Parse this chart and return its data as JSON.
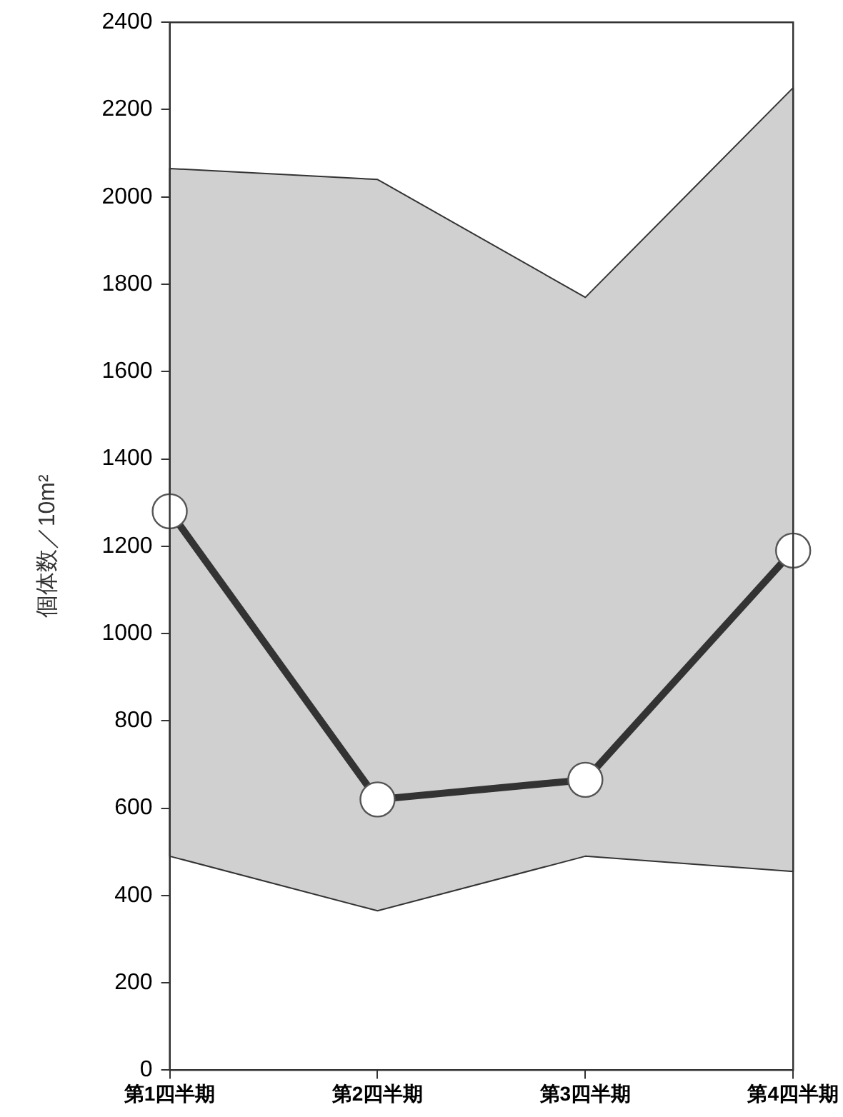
{
  "chart_data": {
    "type": "line",
    "ylabel": "個体数／10m²",
    "categories": [
      "第1四半期",
      "第2四半期",
      "第3四半期",
      "第4四半期"
    ],
    "series": [
      {
        "color": "#333333",
        "values": [
          1280,
          620,
          665,
          1190
        ],
        "lower": [
          490,
          365,
          490,
          455
        ],
        "upper": [
          2065,
          2040,
          1770,
          2250
        ]
      }
    ],
    "ylim": [
      0,
      2400
    ],
    "yticks": [
      0,
      200,
      400,
      600,
      800,
      1000,
      1200,
      1400,
      1600,
      1800,
      2000,
      2200,
      2400
    ],
    "grid": false,
    "legend": false,
    "marker": "circle",
    "line_style": "solid"
  }
}
